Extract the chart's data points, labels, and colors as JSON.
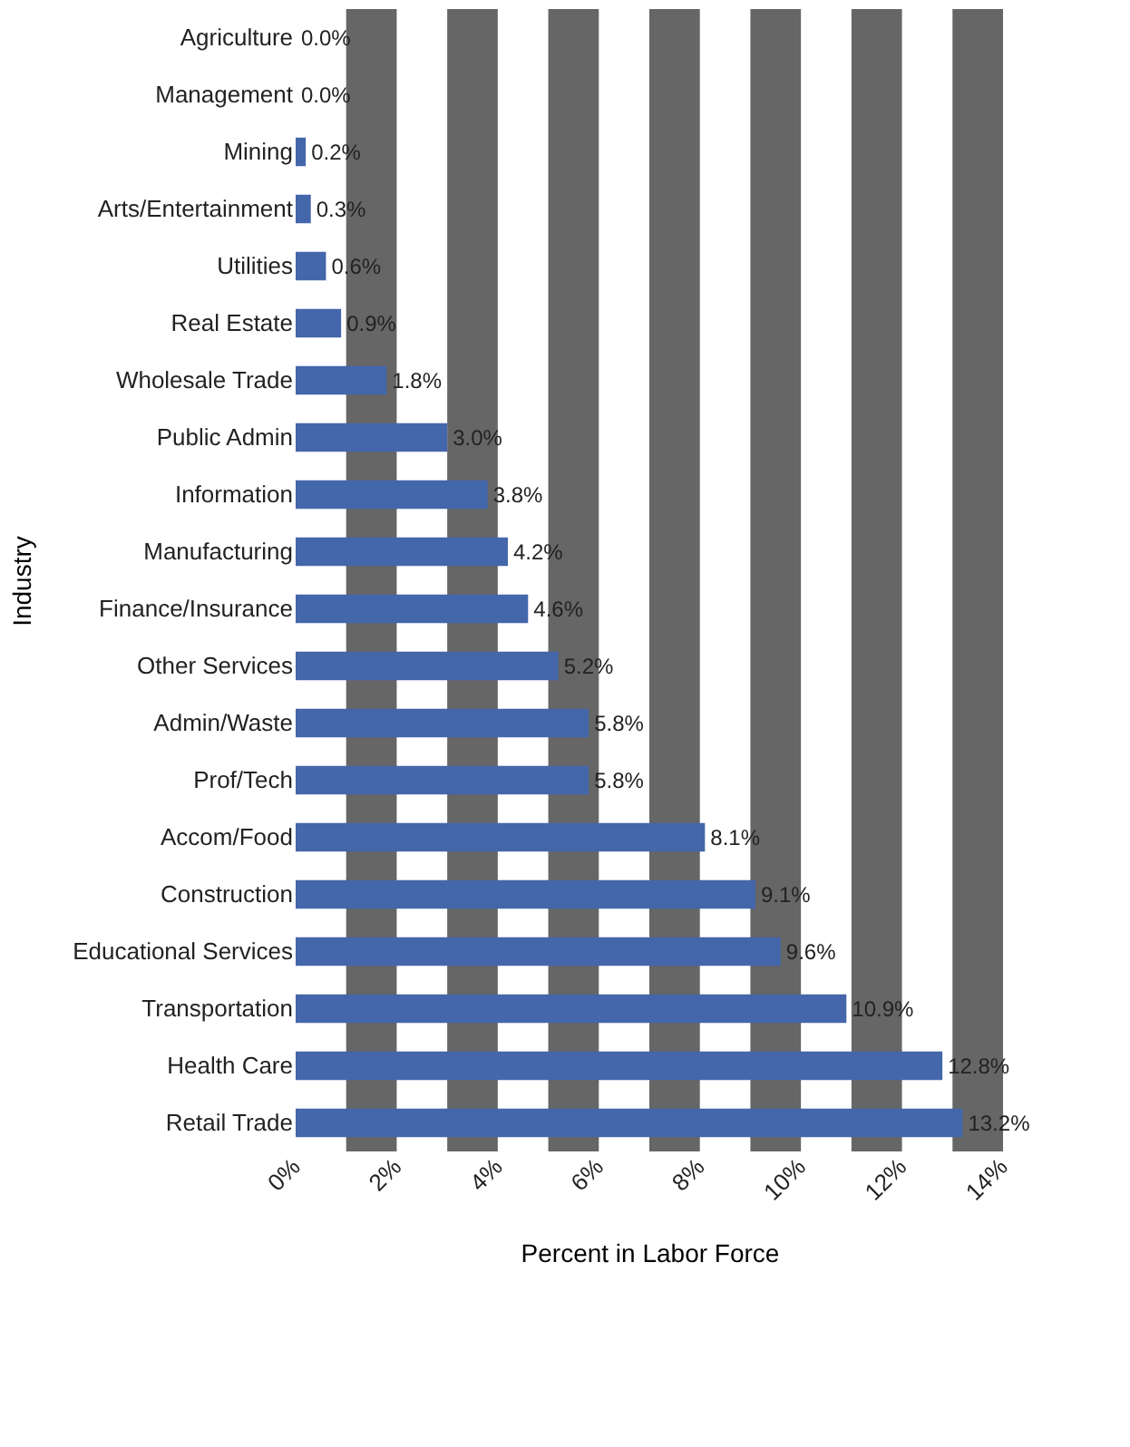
{
  "chart_data": {
    "type": "bar",
    "orientation": "horizontal",
    "xlabel": "Percent in Labor Force",
    "ylabel": "Industry",
    "categories": [
      "Agriculture",
      "Management",
      "Mining",
      "Arts/Entertainment",
      "Utilities",
      "Real Estate",
      "Wholesale Trade",
      "Public Admin",
      "Information",
      "Manufacturing",
      "Finance/Insurance",
      "Other Services",
      "Admin/Waste",
      "Prof/Tech",
      "Accom/Food",
      "Construction",
      "Educational Services",
      "Transportation",
      "Health Care",
      "Retail Trade"
    ],
    "values": [
      0.0,
      0.0,
      0.2,
      0.3,
      0.6,
      0.9,
      1.8,
      3.0,
      3.8,
      4.2,
      4.6,
      5.2,
      5.8,
      5.8,
      8.1,
      9.1,
      9.6,
      10.9,
      12.8,
      13.2
    ],
    "value_labels": [
      "0.0%",
      "0.0%",
      "0.2%",
      "0.3%",
      "0.6%",
      "0.9%",
      "1.8%",
      "3.0%",
      "3.8%",
      "4.2%",
      "4.6%",
      "5.2%",
      "5.8%",
      "5.8%",
      "8.1%",
      "9.1%",
      "9.6%",
      "10.9%",
      "12.8%",
      "13.2%"
    ],
    "color": "#4466aa",
    "xlim": [
      0,
      14
    ],
    "xticks": [
      {
        "value": 0,
        "label": "0%"
      },
      {
        "value": 2,
        "label": "2%"
      },
      {
        "value": 4,
        "label": "4%"
      },
      {
        "value": 6,
        "label": "6%"
      },
      {
        "value": 8,
        "label": "8%"
      },
      {
        "value": 10,
        "label": "10%"
      },
      {
        "value": 12,
        "label": "12%"
      },
      {
        "value": 14,
        "label": "14%"
      }
    ],
    "bands": [
      {
        "axis": "x",
        "from": 1,
        "to": 2,
        "color": "#666666"
      },
      {
        "axis": "x",
        "from": 3,
        "to": 4,
        "color": "#666666"
      },
      {
        "axis": "x",
        "from": 5,
        "to": 6,
        "color": "#666666"
      },
      {
        "axis": "x",
        "from": 7,
        "to": 8,
        "color": "#666666"
      },
      {
        "axis": "x",
        "from": 9,
        "to": 10,
        "color": "#666666"
      },
      {
        "axis": "x",
        "from": 11,
        "to": 12,
        "color": "#666666"
      },
      {
        "axis": "x",
        "from": 13,
        "to": 14,
        "color": "#666666"
      }
    ],
    "grid": false
  }
}
